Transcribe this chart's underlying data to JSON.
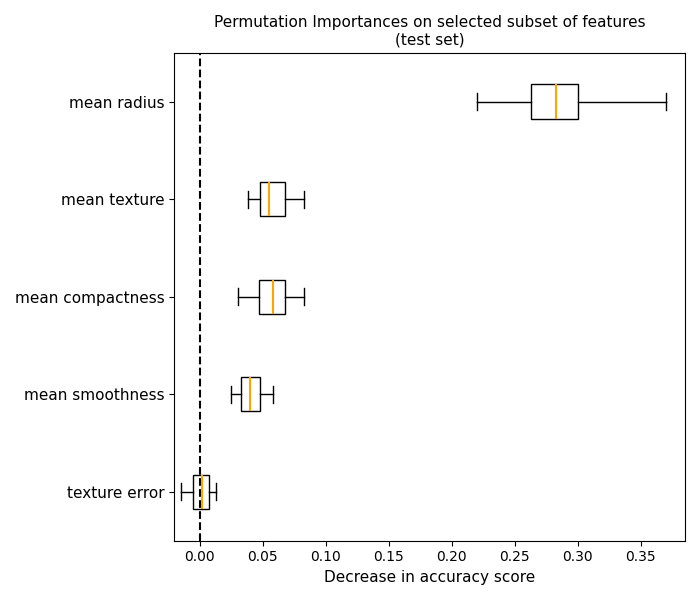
{
  "title": "Permutation Importances on selected subset of features\n(test set)",
  "xlabel": "Decrease in accuracy score",
  "features": [
    "mean radius",
    "mean texture",
    "mean compactness",
    "mean smoothness",
    "texture error"
  ],
  "box_data": {
    "mean radius": {
      "whislo": 0.22,
      "q1": 0.263,
      "med": 0.283,
      "q3": 0.3,
      "whishi": 0.37
    },
    "mean texture": {
      "whislo": 0.038,
      "q1": 0.048,
      "med": 0.055,
      "q3": 0.068,
      "whishi": 0.083
    },
    "mean compactness": {
      "whislo": 0.03,
      "q1": 0.047,
      "med": 0.058,
      "q3": 0.068,
      "whishi": 0.083
    },
    "mean smoothness": {
      "whislo": 0.025,
      "q1": 0.033,
      "med": 0.04,
      "q3": 0.048,
      "whishi": 0.058
    },
    "texture error": {
      "whislo": -0.015,
      "q1": -0.005,
      "med": 0.002,
      "q3": 0.007,
      "whishi": 0.013
    }
  },
  "median_color": "orange",
  "box_facecolor": "white",
  "box_edgecolor": "black",
  "whisker_color": "black",
  "cap_color": "black",
  "vline_x": 0.0,
  "vline_color": "black",
  "vline_style": "--",
  "xlim_left": -0.02,
  "xlim_right": 0.385,
  "xticks": [
    0.0,
    0.05,
    0.1,
    0.15,
    0.2,
    0.25,
    0.3,
    0.35
  ],
  "background_color": "white",
  "title_fontsize": 11,
  "label_fontsize": 11,
  "tick_fontsize": 10,
  "box_width": 0.35
}
